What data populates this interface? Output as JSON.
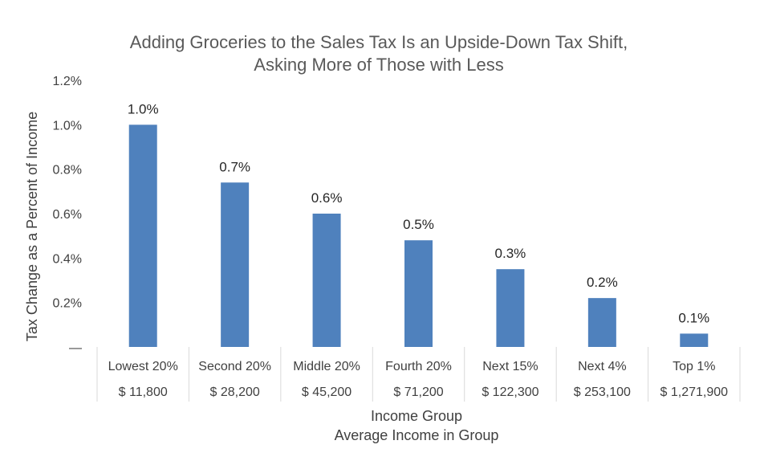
{
  "chart_data": {
    "type": "bar",
    "title": [
      "Adding Groceries to the Sales Tax Is an Upside-Down Tax Shift,",
      "Asking More of Those with Less"
    ],
    "xlabel": [
      "Income Group",
      "Average Income in Group"
    ],
    "ylabel": "Tax Change as a Percent of Income",
    "ylim": [
      0,
      1.2
    ],
    "yticks": [
      {
        "value": 0,
        "label": "—"
      },
      {
        "value": 0.2,
        "label": "0.2%"
      },
      {
        "value": 0.4,
        "label": "0.4%"
      },
      {
        "value": 0.6,
        "label": "0.6%"
      },
      {
        "value": 0.8,
        "label": "0.8%"
      },
      {
        "value": 1.0,
        "label": "1.0%"
      },
      {
        "value": 1.2,
        "label": "1.2%"
      }
    ],
    "categories": [
      "Lowest 20%",
      "Second 20%",
      "Middle 20%",
      "Fourth 20%",
      "Next 15%",
      "Next 4%",
      "Top 1%"
    ],
    "average_incomes": [
      "$ 11,800",
      "$ 28,200",
      "$ 45,200",
      "$ 71,200",
      "$ 122,300",
      "$ 253,100",
      "$ 1,271,900"
    ],
    "values": [
      1.0,
      0.74,
      0.6,
      0.48,
      0.35,
      0.22,
      0.06
    ],
    "data_labels": [
      "1.0%",
      "0.7%",
      "0.6%",
      "0.5%",
      "0.3%",
      "0.2%",
      "0.1%"
    ],
    "bar_color": "#4f81bd",
    "grid": false,
    "legend": "none"
  }
}
